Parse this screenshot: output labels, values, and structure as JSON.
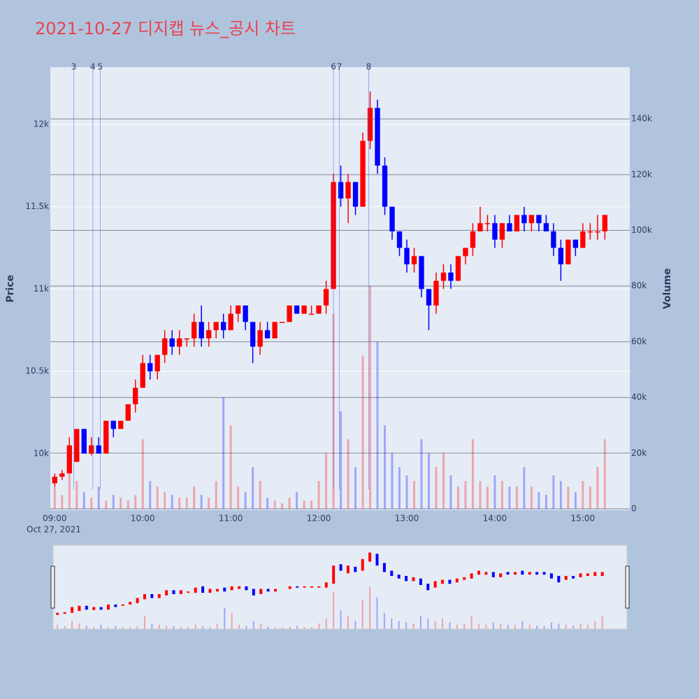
{
  "chart_data": {
    "type": "candlestick",
    "title": "2021-10-27 디지캡 뉴스_공시 차트",
    "ylabel": "Price",
    "y2label": "Volume",
    "x_date_label": "Oct 27, 2021",
    "increasing_color": "#ff0000",
    "decreasing_color": "#0000ff",
    "xlim": [
      "2021-10-27 08:57",
      "2021-10-27 15:32"
    ],
    "xticks": [
      {
        "value": "2021-10-27 09:00",
        "label": "09:00"
      },
      {
        "value": "2021-10-27 10:00",
        "label": "10:00"
      },
      {
        "value": "2021-10-27 11:00",
        "label": "11:00"
      },
      {
        "value": "2021-10-27 12:00",
        "label": "12:00"
      },
      {
        "value": "2021-10-27 13:00",
        "label": "13:00"
      },
      {
        "value": "2021-10-27 14:00",
        "label": "14:00"
      },
      {
        "value": "2021-10-27 15:00",
        "label": "15:00"
      }
    ],
    "ylim": [
      9656,
      12348
    ],
    "yticks": [
      {
        "value": 10000,
        "label": "10k"
      },
      {
        "value": 10500,
        "label": "10.5k"
      },
      {
        "value": 11000,
        "label": "11k"
      },
      {
        "value": 11500,
        "label": "11.5k"
      },
      {
        "value": 12000,
        "label": "12k"
      }
    ],
    "y2lim": [
      -500,
      158600
    ],
    "y2ticks": [
      0,
      {
        "value": 20000,
        "label": "20k"
      },
      {
        "value": 40000,
        "label": "40k"
      },
      {
        "value": 60000,
        "label": "60k"
      },
      {
        "value": 80000,
        "label": "80k"
      },
      {
        "value": 100000,
        "label": "100k"
      },
      {
        "value": 120000,
        "label": "120k"
      },
      {
        "value": 140000,
        "label": "140k"
      }
    ],
    "grid": true,
    "annotations": [
      {
        "x": "2021-10-27 09:13",
        "label": "3"
      },
      {
        "x": "2021-10-27 09:26",
        "label": "4"
      },
      {
        "x": "2021-10-27 09:31",
        "label": "5"
      },
      {
        "x": "2021-10-27 12:10",
        "label": "6"
      },
      {
        "x": "2021-10-27 12:14",
        "label": "7"
      },
      {
        "x": "2021-10-27 12:34",
        "label": "8"
      }
    ],
    "x": [
      "2021-10-27 09:00",
      "2021-10-27 09:05",
      "2021-10-27 09:10",
      "2021-10-27 09:15",
      "2021-10-27 09:20",
      "2021-10-27 09:25",
      "2021-10-27 09:30",
      "2021-10-27 09:35",
      "2021-10-27 09:40",
      "2021-10-27 09:45",
      "2021-10-27 09:50",
      "2021-10-27 09:55",
      "2021-10-27 10:00",
      "2021-10-27 10:05",
      "2021-10-27 10:10",
      "2021-10-27 10:15",
      "2021-10-27 10:20",
      "2021-10-27 10:25",
      "2021-10-27 10:30",
      "2021-10-27 10:35",
      "2021-10-27 10:40",
      "2021-10-27 10:45",
      "2021-10-27 10:50",
      "2021-10-27 10:55",
      "2021-10-27 11:00",
      "2021-10-27 11:05",
      "2021-10-27 11:10",
      "2021-10-27 11:15",
      "2021-10-27 11:20",
      "2021-10-27 11:25",
      "2021-10-27 11:30",
      "2021-10-27 11:35",
      "2021-10-27 11:40",
      "2021-10-27 11:45",
      "2021-10-27 11:50",
      "2021-10-27 11:55",
      "2021-10-27 12:00",
      "2021-10-27 12:05",
      "2021-10-27 12:10",
      "2021-10-27 12:15",
      "2021-10-27 12:20",
      "2021-10-27 12:25",
      "2021-10-27 12:30",
      "2021-10-27 12:35",
      "2021-10-27 12:40",
      "2021-10-27 12:45",
      "2021-10-27 12:50",
      "2021-10-27 12:55",
      "2021-10-27 13:00",
      "2021-10-27 13:05",
      "2021-10-27 13:10",
      "2021-10-27 13:15",
      "2021-10-27 13:20",
      "2021-10-27 13:25",
      "2021-10-27 13:30",
      "2021-10-27 13:35",
      "2021-10-27 13:40",
      "2021-10-27 13:45",
      "2021-10-27 13:50",
      "2021-10-27 13:55",
      "2021-10-27 14:00",
      "2021-10-27 14:05",
      "2021-10-27 14:10",
      "2021-10-27 14:15",
      "2021-10-27 14:20",
      "2021-10-27 14:25",
      "2021-10-27 14:30",
      "2021-10-27 14:35",
      "2021-10-27 14:40",
      "2021-10-27 14:45",
      "2021-10-27 14:50",
      "2021-10-27 14:55",
      "2021-10-27 15:00",
      "2021-10-27 15:05",
      "2021-10-27 15:10",
      "2021-10-27 15:15"
    ],
    "open": [
      9820,
      9860,
      9880,
      9950,
      10150,
      10000,
      10050,
      10000,
      10200,
      10150,
      10200,
      10300,
      10400,
      10550,
      10500,
      10600,
      10700,
      10650,
      10700,
      10700,
      10800,
      10700,
      10750,
      10800,
      10750,
      10850,
      10900,
      10800,
      10650,
      10750,
      10700,
      10800,
      10800,
      10900,
      10850,
      10850,
      10850,
      10900,
      11000,
      11650,
      11550,
      11650,
      11500,
      11900,
      12100,
      11750,
      11500,
      11350,
      11250,
      11150,
      11200,
      11000,
      10900,
      11050,
      11100,
      11050,
      11200,
      11250,
      11350,
      11400,
      11400,
      11300,
      11400,
      11350,
      11450,
      11400,
      11450,
      11400,
      11350,
      11250,
      11150,
      11300,
      11250,
      11350,
      11350,
      11350
    ],
    "high": [
      9880,
      9900,
      10100,
      10150,
      10150,
      10100,
      10100,
      10200,
      10200,
      10200,
      10300,
      10450,
      10600,
      10600,
      10600,
      10750,
      10750,
      10750,
      10700,
      10850,
      10900,
      10800,
      10800,
      10850,
      10900,
      10900,
      10900,
      10800,
      10800,
      10800,
      10800,
      10800,
      10900,
      10900,
      10900,
      10900,
      10900,
      11050,
      11700,
      11750,
      11700,
      11650,
      11950,
      12200,
      12150,
      11800,
      11500,
      11350,
      11300,
      11250,
      11200,
      11000,
      11100,
      11150,
      11150,
      11200,
      11250,
      11400,
      11500,
      11450,
      11450,
      11400,
      11450,
      11450,
      11500,
      11450,
      11450,
      11450,
      11400,
      11300,
      11300,
      11300,
      11400,
      11400,
      11450,
      11450
    ],
    "low": [
      9800,
      9840,
      9880,
      9950,
      10000,
      9990,
      10000,
      10000,
      10100,
      10150,
      10200,
      10250,
      10400,
      10450,
      10450,
      10550,
      10600,
      10600,
      10650,
      10650,
      10650,
      10650,
      10700,
      10700,
      10750,
      10800,
      10750,
      10550,
      10600,
      10700,
      10700,
      10800,
      10800,
      10850,
      10850,
      10850,
      10850,
      10850,
      11000,
      11500,
      11400,
      11450,
      11500,
      11850,
      11700,
      11450,
      11300,
      11200,
      11100,
      11100,
      10950,
      10750,
      10850,
      11000,
      11000,
      11050,
      11150,
      11200,
      11350,
      11350,
      11250,
      11250,
      11350,
      11350,
      11350,
      11350,
      11350,
      11350,
      11200,
      11050,
      11150,
      11200,
      11250,
      11300,
      11300,
      11300
    ],
    "close": [
      9860,
      9880,
      10050,
      10150,
      10000,
      10050,
      10000,
      10200,
      10150,
      10200,
      10300,
      10400,
      10550,
      10500,
      10600,
      10700,
      10650,
      10700,
      10700,
      10800,
      10700,
      10750,
      10800,
      10750,
      10850,
      10900,
      10800,
      10650,
      10750,
      10700,
      10800,
      10800,
      10900,
      10850,
      10900,
      10850,
      10900,
      11000,
      11650,
      11550,
      11650,
      11500,
      11900,
      12100,
      11750,
      11500,
      11350,
      11250,
      11150,
      11200,
      11000,
      10900,
      11050,
      11100,
      11050,
      11200,
      11250,
      11350,
      11400,
      11400,
      11300,
      11400,
      11350,
      11450,
      11400,
      11450,
      11400,
      11350,
      11250,
      11150,
      11300,
      11250,
      11350,
      11350,
      11350,
      11450
    ],
    "volume": [
      8000,
      5000,
      15000,
      10000,
      6000,
      4000,
      8000,
      3000,
      5000,
      4000,
      3000,
      5000,
      25000,
      10000,
      8000,
      6000,
      5000,
      4000,
      4000,
      8000,
      5000,
      4000,
      10000,
      40000,
      30000,
      8000,
      6000,
      15000,
      10000,
      4000,
      3000,
      2000,
      4000,
      6000,
      3000,
      3000,
      10000,
      20000,
      70000,
      35000,
      25000,
      15000,
      55000,
      80000,
      60000,
      30000,
      20000,
      15000,
      12000,
      10000,
      25000,
      20000,
      15000,
      20000,
      12000,
      8000,
      10000,
      25000,
      10000,
      8000,
      12000,
      10000,
      8000,
      8000,
      15000,
      8000,
      6000,
      5000,
      12000,
      10000,
      8000,
      6000,
      10000,
      8000,
      15000,
      25000
    ]
  }
}
